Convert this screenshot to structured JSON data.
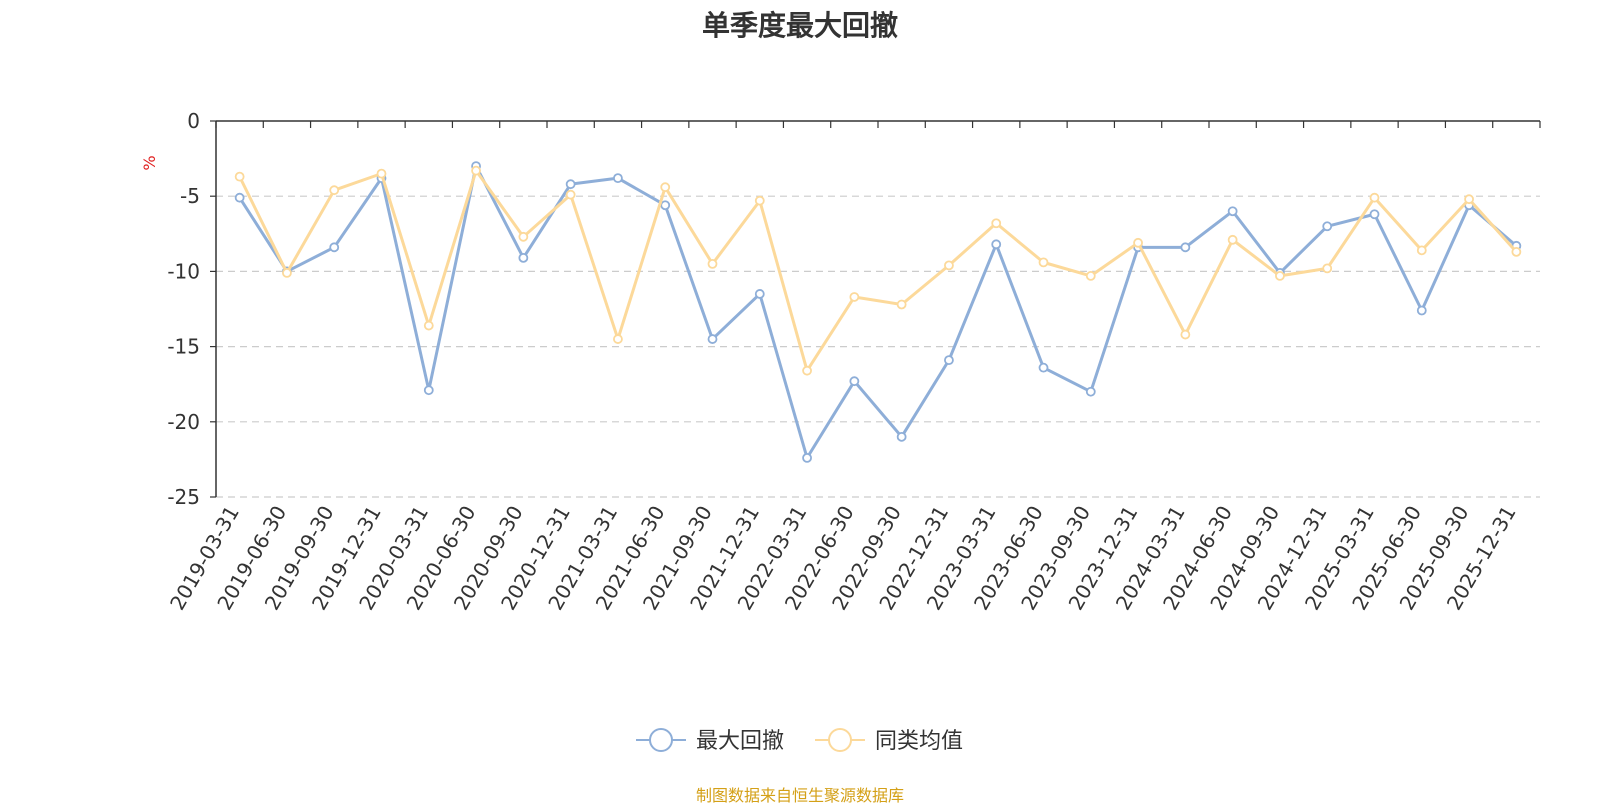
{
  "chart_data": {
    "type": "line",
    "title": "单季度最大回撤",
    "ylabel": "%",
    "xlabel": "",
    "ylim": [
      -25,
      0
    ],
    "yticks": [
      0,
      -5,
      -10,
      -15,
      -20,
      -25
    ],
    "grid": true,
    "legend_position": "bottom",
    "categories": [
      "2019-03-31",
      "2019-06-30",
      "2019-09-30",
      "2019-12-31",
      "2020-03-31",
      "2020-06-30",
      "2020-09-30",
      "2020-12-31",
      "2021-03-31",
      "2021-06-30",
      "2021-09-30",
      "2021-12-31",
      "2022-03-31",
      "2022-06-30",
      "2022-09-30",
      "2022-12-31",
      "2023-03-31",
      "2023-06-30",
      "2023-09-30",
      "2023-12-31",
      "2024-03-31",
      "2024-06-30",
      "2024-09-30",
      "2024-12-31",
      "2025-03-31",
      "2025-06-30",
      "2025-09-30",
      "2025-12-31"
    ],
    "series": [
      {
        "name": "最大回撤",
        "color": "#8eaed8",
        "values": [
          -5.1,
          -10.0,
          -8.4,
          -3.8,
          -17.9,
          -3.0,
          -9.1,
          -4.2,
          -3.8,
          -5.6,
          -14.5,
          -11.5,
          -22.4,
          -17.3,
          -21.0,
          -15.9,
          -8.2,
          -16.4,
          -18.0,
          -8.4,
          -8.4,
          -6.0,
          -10.1,
          -7.0,
          -6.2,
          -12.6,
          -5.6,
          -8.3
        ]
      },
      {
        "name": "同类均值",
        "color": "#fcd99a",
        "values": [
          -3.7,
          -10.1,
          -4.6,
          -3.5,
          -13.6,
          -3.3,
          -7.7,
          -4.9,
          -14.5,
          -4.4,
          -9.5,
          -5.3,
          -16.6,
          -11.7,
          -12.2,
          -9.6,
          -6.8,
          -9.4,
          -10.3,
          -8.1,
          -14.2,
          -7.9,
          -10.3,
          -9.8,
          -5.1,
          -8.6,
          -5.2,
          -8.7
        ]
      }
    ]
  },
  "footer": {
    "source": "制图数据来自恒生聚源数据库"
  }
}
